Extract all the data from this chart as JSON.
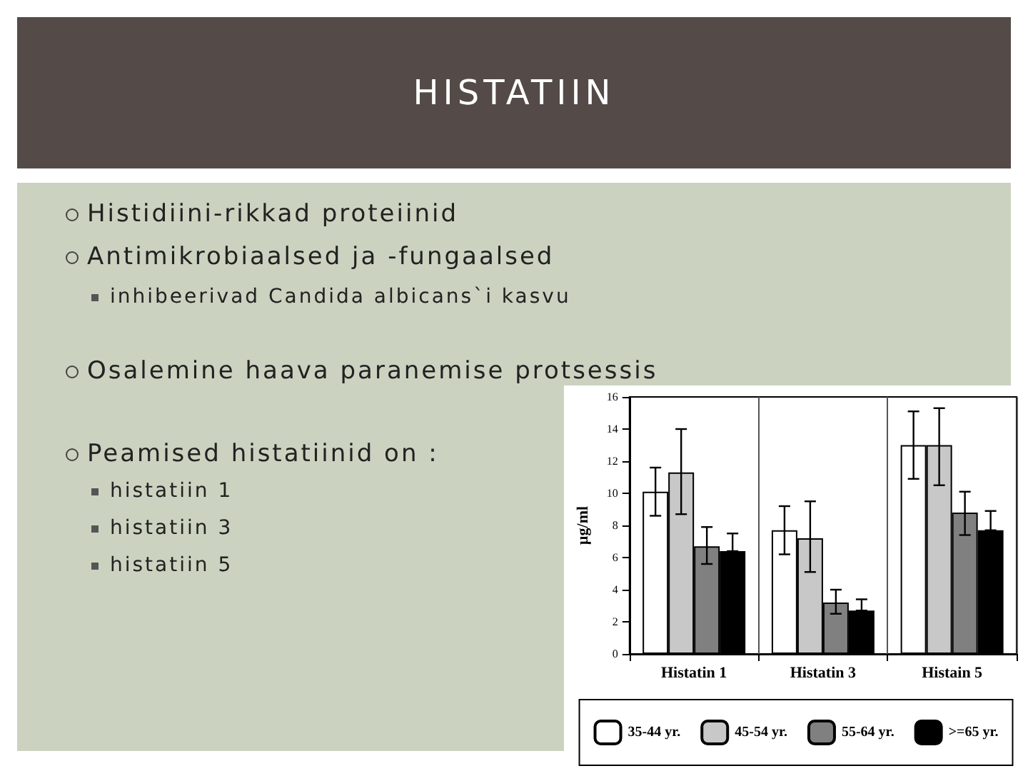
{
  "chart_data": {
    "type": "bar",
    "title": "HISTATIIN",
    "annotations": [
      "Histidiini-rikkad proteiinid",
      "Antimikrobiaalsed ja -fungaalsed",
      "inhibeerivad Candida albicans`i kasvu",
      "Osalemine haava paranemise protsessis",
      "Peamised histatiinid on :",
      "histatiin 1",
      "histatiin 3",
      "histatiin 5"
    ],
    "ylabel": "µg/ml",
    "categories": [
      "Histatin 1",
      "Histatin 3",
      "Histain 5"
    ],
    "series": [
      {
        "name": "35-44 yr.",
        "color": "#ffffff",
        "values": [
          10.1,
          7.7,
          13.0
        ],
        "errors": [
          [
            8.6,
            11.6
          ],
          [
            6.2,
            9.2
          ],
          [
            10.9,
            15.1
          ]
        ]
      },
      {
        "name": "45-54 yr.",
        "color": "#c8c8c8",
        "values": [
          11.3,
          7.2,
          13.0
        ],
        "errors": [
          [
            8.7,
            14.0
          ],
          [
            5.1,
            9.5
          ],
          [
            10.5,
            15.3
          ]
        ]
      },
      {
        "name": "55-64 yr.",
        "color": "#808080",
        "values": [
          6.7,
          3.2,
          8.8
        ],
        "errors": [
          [
            5.6,
            7.9
          ],
          [
            2.5,
            4.0
          ],
          [
            7.4,
            10.1
          ]
        ]
      },
      {
        "name": ">=65 yr.",
        "color": "#000000",
        "values": [
          6.4,
          2.7,
          7.7
        ],
        "errors": [
          [
            6.4,
            7.5
          ],
          [
            2.7,
            3.4
          ],
          [
            7.7,
            8.9
          ]
        ]
      }
    ],
    "ylim": [
      0,
      16
    ],
    "yticks": [
      0,
      2,
      4,
      6,
      8,
      10,
      12,
      14,
      16
    ],
    "grid": "x",
    "legend": "bottom"
  }
}
